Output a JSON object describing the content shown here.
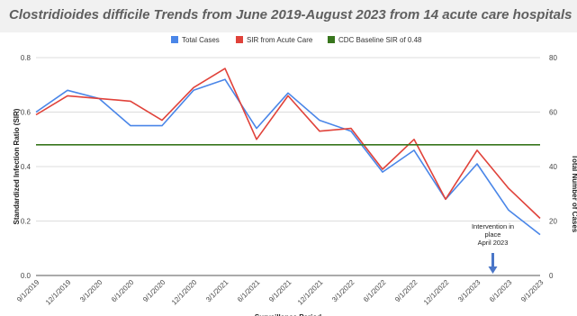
{
  "chart_data": {
    "type": "line",
    "title": "Clostridioides difficile  Trends from June 2019-August 2023 from 14 acute care hospitals",
    "xlabel": "Surveillance  Period",
    "ylabel": "Standardized Infection Ratio (SIR)",
    "y2label": "Total Number of Cases",
    "categories": [
      "9/1/2019",
      "12/1/2019",
      "3/1/2020",
      "6/1/2020",
      "9/1/2020",
      "12/1/2020",
      "3/1/2021",
      "6/1/2021",
      "9/1/2021",
      "12/1/2021",
      "3/1/2022",
      "6/1/2022",
      "9/1/2022",
      "12/1/2022",
      "3/1/2023",
      "6/1/2023",
      "9/1/2023"
    ],
    "ylim": [
      0,
      0.8
    ],
    "y_ticks": [
      "0.0",
      "0.2",
      "0.4",
      "0.6",
      "0.8"
    ],
    "y2lim": [
      0,
      80
    ],
    "y2_ticks": [
      "0",
      "20",
      "40",
      "60",
      "80"
    ],
    "grid": true,
    "legend_position": "top-center",
    "series": [
      {
        "name": "Total Cases",
        "color": "#4a86e8",
        "axis": "right",
        "values": [
          60,
          68,
          65,
          55,
          55,
          68,
          72,
          54,
          67,
          57,
          53,
          38,
          46,
          28,
          41,
          24,
          15
        ]
      },
      {
        "name": "SIR from Acute Care",
        "color": "#e0423a",
        "axis": "left",
        "values": [
          0.59,
          0.66,
          0.65,
          0.64,
          0.57,
          0.69,
          0.76,
          0.5,
          0.66,
          0.53,
          0.54,
          0.39,
          0.5,
          0.28,
          0.46,
          0.32,
          0.21
        ]
      },
      {
        "name": "CDC Baseline SIR of 0.48",
        "color": "#38761d",
        "axis": "left",
        "values": [
          0.48,
          0.48,
          0.48,
          0.48,
          0.48,
          0.48,
          0.48,
          0.48,
          0.48,
          0.48,
          0.48,
          0.48,
          0.48,
          0.48,
          0.48,
          0.48,
          0.48
        ]
      }
    ],
    "annotations": [
      {
        "lines": [
          "Intervention in",
          "place",
          "April 2023"
        ],
        "arrow_color": "#4a76c8",
        "at_category": "4/1/2023"
      }
    ]
  }
}
